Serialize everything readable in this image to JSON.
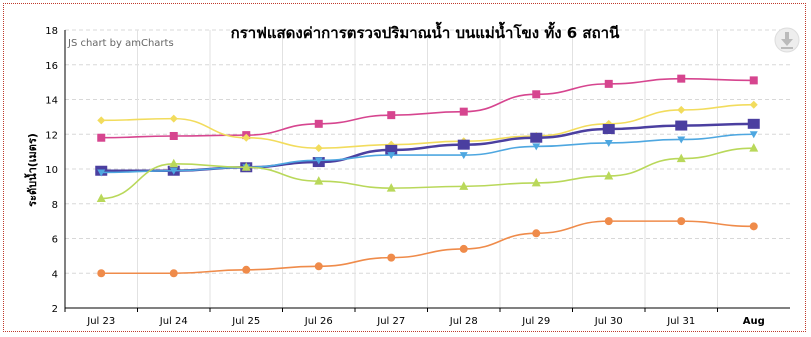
{
  "chart_data": {
    "type": "line",
    "title": "กราฟแสดงค่าการตรวจปริมาณน้ำ บนแม่น้ำโขง ทั้ง 6 สถานี",
    "credit": "JS chart by amCharts",
    "ylabel": "ระดับน้ำ(เมตร)",
    "xlabel": "",
    "ylim": [
      2,
      18
    ],
    "yticks": [
      2,
      4,
      6,
      8,
      10,
      12,
      14,
      16,
      18
    ],
    "grid": true,
    "categories": [
      "Jul 23",
      "Jul 24",
      "Jul 25",
      "Jul 26",
      "Jul 27",
      "Jul 28",
      "Jul 29",
      "Jul 30",
      "Jul 31",
      "Aug"
    ],
    "series": [
      {
        "color": "#d6458f",
        "marker": "square",
        "values": [
          11.8,
          11.9,
          11.95,
          12.6,
          13.1,
          13.3,
          14.3,
          14.9,
          15.2,
          15.1
        ]
      },
      {
        "color": "#f2dc5d",
        "marker": "diamond",
        "values": [
          12.8,
          12.9,
          11.8,
          11.2,
          11.4,
          11.6,
          11.9,
          12.6,
          13.4,
          13.7
        ]
      },
      {
        "color": "#4b3fa0",
        "marker": "square-lg",
        "values": [
          9.9,
          9.9,
          10.1,
          10.4,
          11.1,
          11.4,
          11.8,
          12.3,
          12.5,
          12.6
        ]
      },
      {
        "color": "#4ea7e0",
        "marker": "triangle-down",
        "values": [
          9.8,
          9.9,
          10.1,
          10.5,
          10.8,
          10.8,
          11.3,
          11.5,
          11.7,
          12.0
        ]
      },
      {
        "color": "#b9d85a",
        "marker": "triangle",
        "values": [
          8.3,
          10.3,
          10.1,
          9.3,
          8.9,
          9.0,
          9.2,
          9.6,
          10.6,
          11.2
        ]
      },
      {
        "color": "#ef8b4a",
        "marker": "circle",
        "values": [
          4.0,
          4.0,
          4.2,
          4.4,
          4.9,
          5.4,
          6.3,
          7.0,
          7.0,
          6.7
        ]
      }
    ]
  },
  "toolbar": {
    "download_icon": "download-icon"
  }
}
